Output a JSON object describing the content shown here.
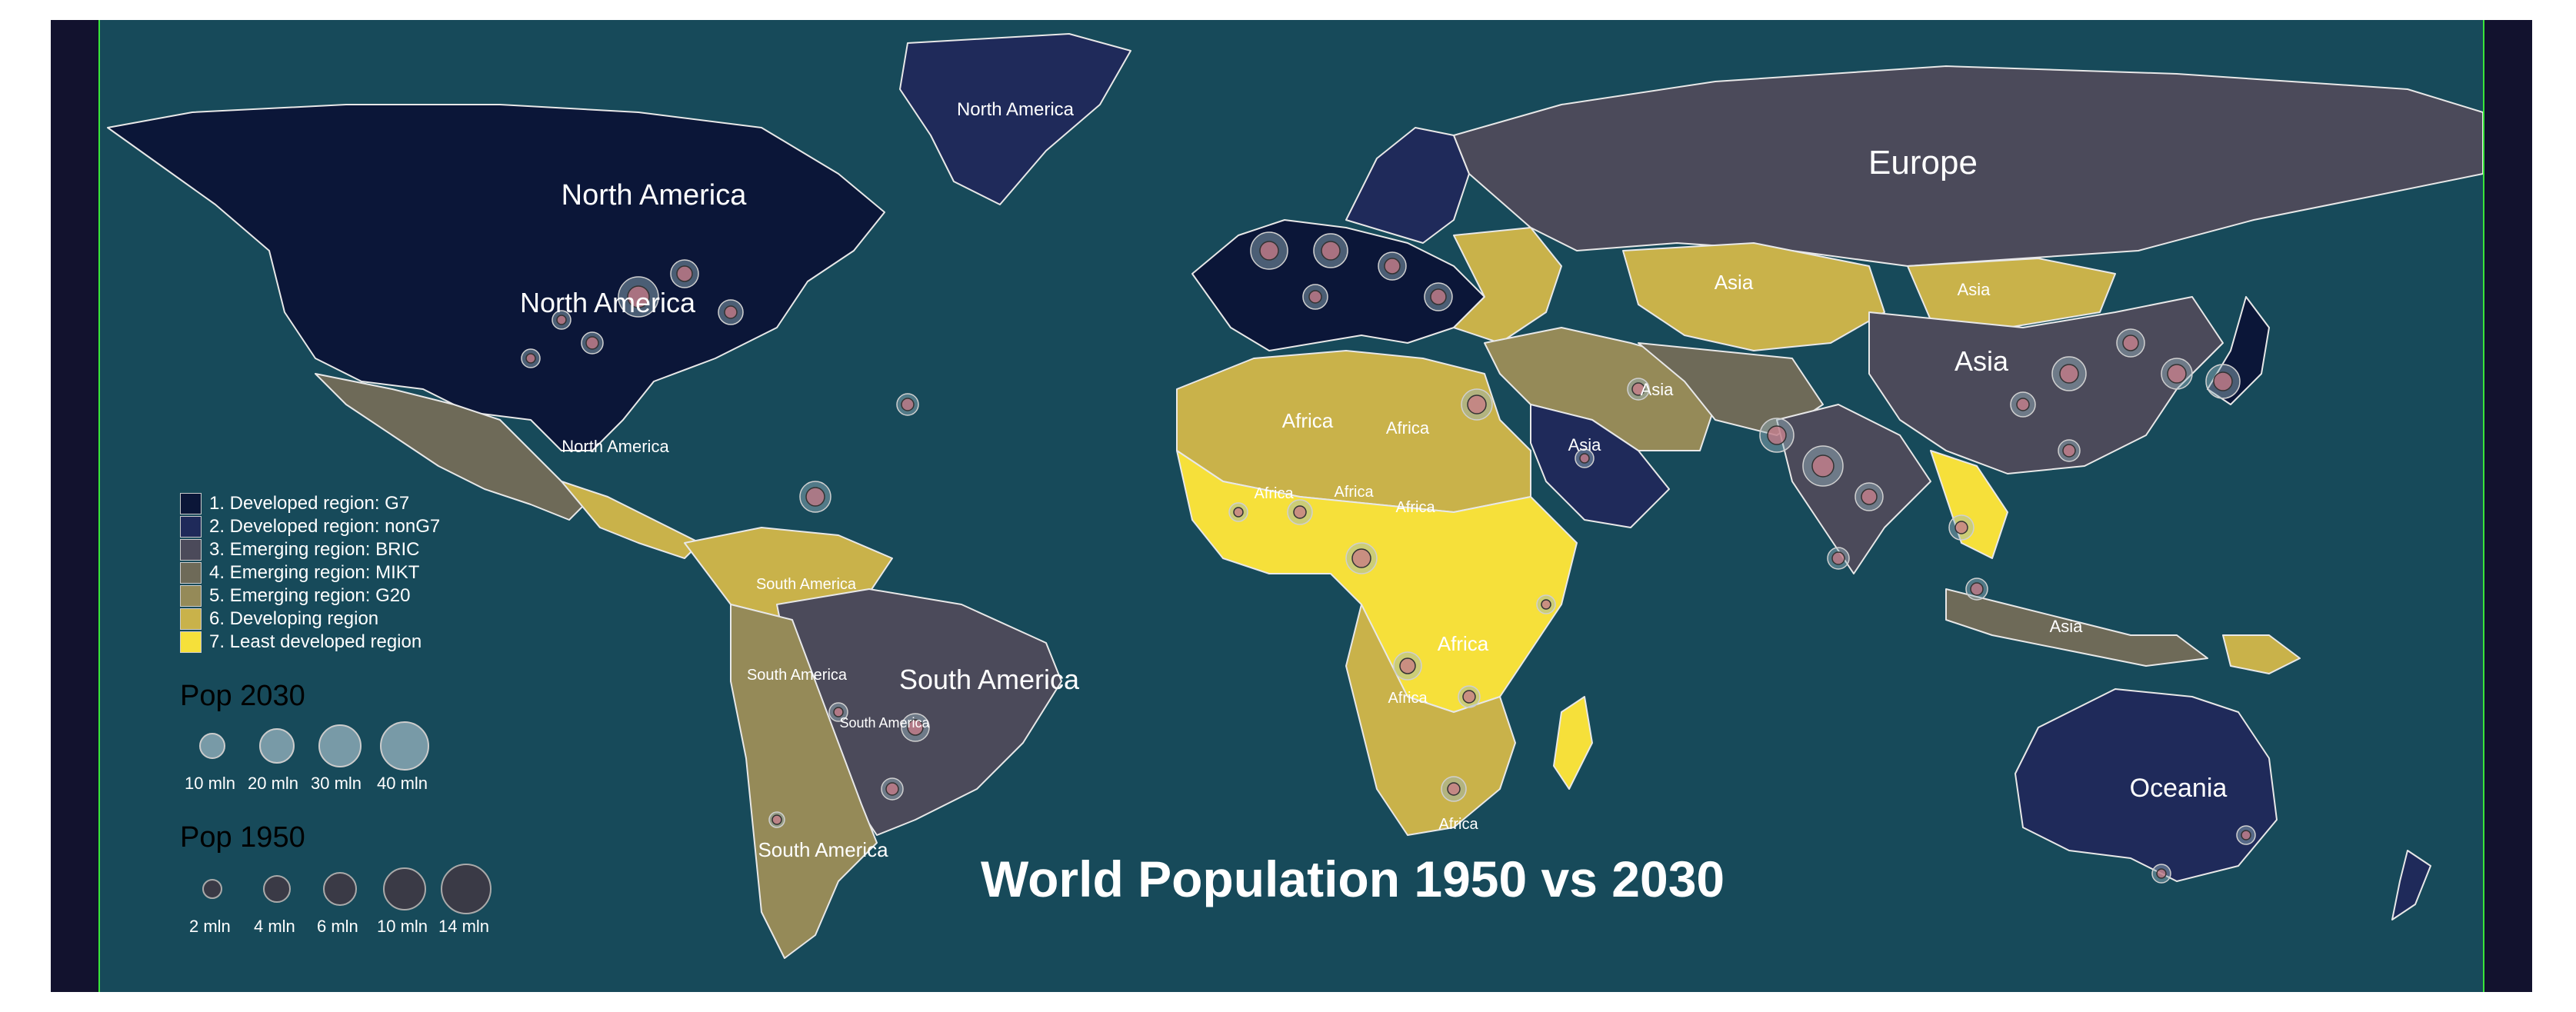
{
  "title": "World Population 1950 vs 2030",
  "colors": {
    "frame": "#12122e",
    "ocean": "#174a5a",
    "bound_line": "#39e639",
    "border": "#e8e8e8",
    "city_1950": "#c87a86",
    "city_2030": "#9ab6c2"
  },
  "legend": {
    "categories": [
      {
        "label": "1. Developed region: G7",
        "color": "#0b1638"
      },
      {
        "label": "2. Developed region: nonG7",
        "color": "#1f2a5a"
      },
      {
        "label": "3. Emerging region: BRIC",
        "color": "#4b4a5a"
      },
      {
        "label": "4. Emerging region: MIKT",
        "color": "#6e6a58"
      },
      {
        "label": "5. Emerging region: G20",
        "color": "#958a58"
      },
      {
        "label": "6. Developing region",
        "color": "#c9b24a"
      },
      {
        "label": "7. Least developed region",
        "color": "#f6e03a"
      }
    ],
    "pop2030": {
      "title": "Pop 2030",
      "items": [
        {
          "label": "10 mln",
          "value_mln": 10
        },
        {
          "label": "20 mln",
          "value_mln": 20
        },
        {
          "label": "30 mln",
          "value_mln": 30
        },
        {
          "label": "40 mln",
          "value_mln": 40
        }
      ]
    },
    "pop1950": {
      "title": "Pop 1950",
      "items": [
        {
          "label": "2 mln",
          "value_mln": 2
        },
        {
          "label": "4 mln",
          "value_mln": 4
        },
        {
          "label": "6 mln",
          "value_mln": 6
        },
        {
          "label": "10 mln",
          "value_mln": 10
        },
        {
          "label": "14 mln",
          "value_mln": 14
        }
      ]
    }
  },
  "region_labels": [
    "North America",
    "North America",
    "North America",
    "North America",
    "Europe",
    "Asia",
    "Asia",
    "Asia",
    "Asia",
    "Asia",
    "Asia",
    "Africa",
    "Africa",
    "Africa",
    "Africa",
    "Africa",
    "Africa",
    "Africa",
    "Africa",
    "South America",
    "South America",
    "South America",
    "South America",
    "South America",
    "Oceania"
  ]
}
